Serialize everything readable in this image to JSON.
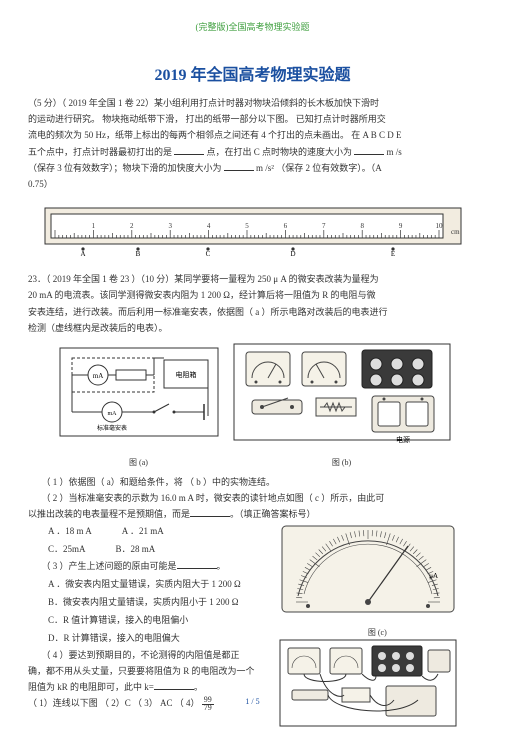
{
  "header_note": "(完整版)全国高考物理实验题",
  "title": "2019 年全国高考物理实验题",
  "q22": {
    "line1_a": "（5 分）（ 2019 年全国 1 卷 22）某小组利用打点计时器对物块沿倾斜的长木板加快下滑时",
    "line2": "的运动进行研究。 物块拖动纸带下滑，  打出的纸带一部分以下图。  已知打点计时器所用交",
    "line3": "流电的频次为 50 Hz，纸带上标出的每两个相邻点之间还有    4 个打出的点未画出。  在 A B C D E",
    "line4": "五个点中，打点计时器最初打出的是",
    "line4_b": "点，在打出  C 点时物块的速度大小为",
    "line4_unit": "m /s",
    "line5": "（保存  3  位有效数字）；物块下滑的加快度大小为",
    "line5_b": "m /s²",
    "line5_c": "（保存 2   位有效数字）。（A",
    "line6": "0.75）"
  },
  "ruler": {
    "labels": [
      "1",
      "2",
      "3",
      "4",
      "5",
      "6",
      "7",
      "8",
      "9",
      "10"
    ],
    "unit": "cm",
    "dots": [
      "A",
      "B",
      "C",
      "D",
      "E"
    ],
    "outer_fill": "#f2ece0",
    "stroke": "#333333"
  },
  "q23": {
    "line1": "23．（ 2019 年全国 1 卷 23 ）（10 分）某同学要将一量程为    250 μ A 的微安表改装为量程为",
    "line2": "20 mA 的电流表。该同学测得微安表内阻为     1 200   Ω，经计算后将一阻值为 R 的电阻与微",
    "line3": "安表连结，进行改装。而后利用一标准毫安表，依据图（     a ）所示电路对改装后的电表进行",
    "line4": "检测（虚线框内是改装后的电表）。",
    "caption_a": "图  (a)",
    "caption_b": "图  (b)",
    "sub1": "（ 1 ）依据图（  a）和题给条件，将 （   b ）中的实物连结。",
    "sub2": "（ 2 ）当标准毫安表的示数为   16.0 m A 时，微安表的读针地点如图（    c ）所示，由此可",
    "sub2b": "以推出改装的电表量程不是预期值，而是",
    "sub2c": "。（填正确答案标号）",
    "optA": "A ．18 m A",
    "optA2": "A ．21 mA",
    "optC": "C．25mA",
    "optB2": "B．28 mA",
    "sub3": "（ 3 ）产生上述问题的原由可能是",
    "sub3b": "。",
    "optA3": "A ．微安表内阻丈量错误，实质内阻大于     1  200    Ω",
    "optB3": "微安表内阻丈量错误，实质内阻小于     1  200    Ω",
    "optC3": "C．R 值计算错误，接入的电阻偏小",
    "optD3": "D．R 计算错误，接入的电阻偏大",
    "sub4": "（ 4 ）要达到预期目的，不论测得的内阻值是都正",
    "sub4b": "确，都不用从头丈量，只要要将阻值为     R 的电阻改为一个",
    "sub4c": "阻值为 kR 的电阻即可，此中   k=",
    "sub4d": "。",
    "ans": "（ 1）连线以下图     （ 2）C    （ 3） AC  （ 4）",
    "frac_num": "99",
    "frac_den": "79",
    "caption_c": "图  (c)"
  },
  "circuit": {
    "box_stroke": "#333333",
    "dash": "4,2",
    "label_ma": "mA",
    "label_res": "电阻箱",
    "label_std": "标准毫安表",
    "label_bat": "电源"
  },
  "components": {
    "meter_face": "#f5f2e8",
    "meter_stroke": "#444444",
    "battery_fill": "#eeeae0"
  },
  "footer": "1 / 5",
  "colors": {
    "title": "#1a4fa0",
    "header": "#40a040",
    "text": "#333333",
    "bg": "#ffffff"
  }
}
